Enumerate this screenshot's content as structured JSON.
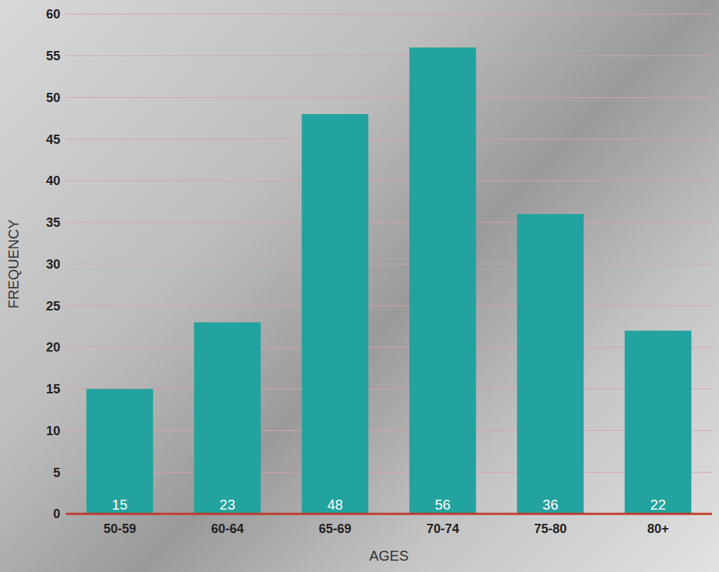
{
  "chart_data": {
    "type": "bar",
    "x_label": "AGES",
    "y_label": "FREQUENCY",
    "categories": [
      "50-59",
      "60-64",
      "65-69",
      "70-74",
      "75-80",
      "80+"
    ],
    "values": [
      15,
      23,
      48,
      56,
      36,
      22
    ],
    "color": "#22a39f",
    "ylim": [
      0,
      60
    ],
    "yticks": [
      0,
      5,
      10,
      15,
      20,
      25,
      30,
      35,
      40,
      45,
      50,
      55,
      60
    ],
    "grid": true,
    "data_labels": true
  }
}
